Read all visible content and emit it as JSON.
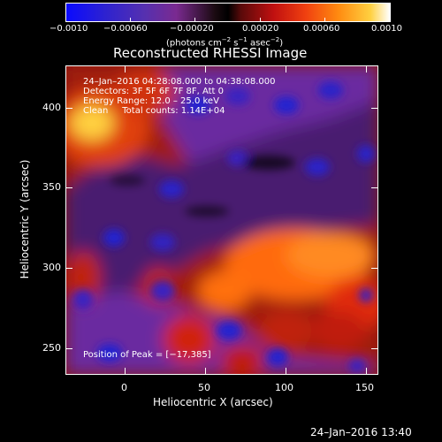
{
  "colorbar": {
    "ticks": [
      "−0.0010",
      "−0.00060",
      "−0.00020",
      "0.00020",
      "0.00060",
      "0.0010"
    ],
    "unit_a": "(photons cm",
    "unit_b": "−2",
    "unit_c": " s",
    "unit_d": "−1",
    "unit_e": " asec",
    "unit_f": "−2",
    "unit_g": ")"
  },
  "plot": {
    "title": "Reconstructed RHESSI Image",
    "xlabel": "Heliocentric X (arcsec)",
    "ylabel": "Heliocentric Y (arcsec)",
    "xticks": [
      "0",
      "50",
      "100",
      "150"
    ],
    "yticks": [
      "400",
      "350",
      "300",
      "250"
    ],
    "info": [
      "24–Jan–2016 04:28:08.000 to 04:38:08.000",
      "Detectors: 3F 5F 6F 7F 8F, Att 0",
      "Energy Range: 12.0 – 25.0 keV",
      "Clean     Total counts: 1.14E+04"
    ],
    "peak": "Position of Peak = [−17,385]"
  },
  "footer": {
    "timestamp": "24–Jan–2016 13:40"
  },
  "colors": {
    "blue": "#0a1cc8",
    "purple": "#6a2aa6",
    "black": "#000000",
    "red": "#e01010",
    "orange": "#ff7a10",
    "yellow": "#ffe040",
    "white": "#ffffff"
  }
}
